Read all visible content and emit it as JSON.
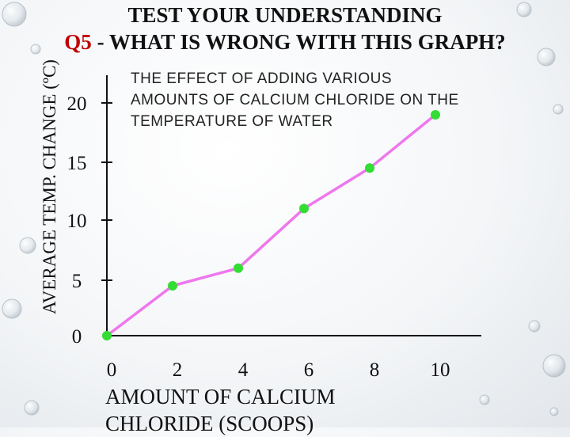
{
  "slide": {
    "title_line1": "TEST YOUR UNDERSTANDING",
    "question_label": "Q5",
    "title_line2_rest": " - WHAT IS WRONG WITH THIS GRAPH?"
  },
  "chart_data": {
    "type": "line",
    "title_lines": [
      "THE EFFECT OF ADDING VARIOUS",
      "AMOUNTS OF CALCIUM CHLORIDE ON THE",
      "TEMPERATURE OF WATER"
    ],
    "ylabel": "AVERAGE TEMP. CHANGE (ºC)",
    "xlabel_lines": [
      "AMOUNT OF CALCIUM",
      "CHLORIDE (SCOOPS)"
    ],
    "x_ticks": [
      0,
      2,
      4,
      6,
      8,
      10
    ],
    "y_ticks": [
      0,
      5,
      10,
      15,
      20
    ],
    "xlim": [
      0,
      11.2
    ],
    "y_tick_positions": [
      0,
      1,
      2,
      3,
      4
    ],
    "x": [
      0,
      2,
      4,
      6,
      8,
      10
    ],
    "y": [
      0,
      4.5,
      6.0,
      11.0,
      14.5,
      19.0
    ],
    "grid": false,
    "legend": "none",
    "colors": {
      "line": "#ee77ee",
      "point": "#33dd33",
      "axis": "#111111"
    }
  }
}
